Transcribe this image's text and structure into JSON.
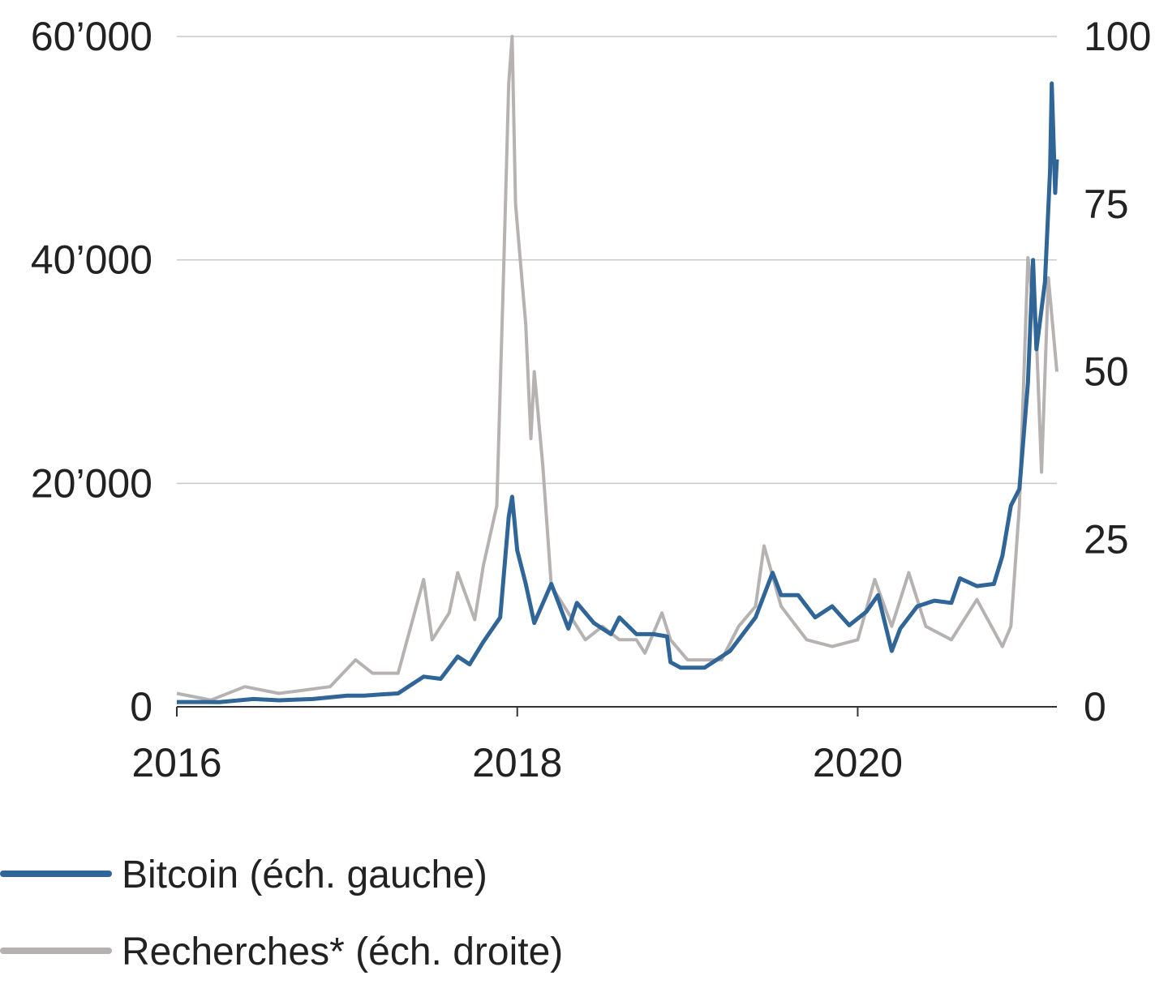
{
  "chart_data": {
    "type": "line",
    "title": "",
    "xlabel": "",
    "ylabel_left": "",
    "ylabel_right": "",
    "xlim": [
      2016.0,
      2021.17
    ],
    "ylim_left": [
      0,
      60000
    ],
    "ylim_right": [
      0,
      100
    ],
    "x_ticks": [
      2016,
      2018,
      2020
    ],
    "x_tick_labels": [
      "2016",
      "2018",
      "2020"
    ],
    "y_left_ticks": [
      0,
      20000,
      40000,
      60000
    ],
    "y_left_tick_labels": [
      "0",
      "20’000",
      "40’000",
      "60’000"
    ],
    "y_right_ticks": [
      0,
      25,
      50,
      75,
      100
    ],
    "y_right_tick_labels": [
      "0",
      "25",
      "50",
      "75",
      "100"
    ],
    "grid": true,
    "legend_position": "bottom-left",
    "colors": {
      "bitcoin": "#2f6597",
      "searches": "#b7b2b2",
      "grid": "#c8c8c8",
      "axis": "#333333"
    },
    "series": [
      {
        "name": "Bitcoin (éch. gauche)",
        "axis": "left",
        "points": [
          [
            2016.0,
            430
          ],
          [
            2016.25,
            420
          ],
          [
            2016.45,
            700
          ],
          [
            2016.6,
            580
          ],
          [
            2016.8,
            700
          ],
          [
            2017.0,
            1000
          ],
          [
            2017.1,
            1000
          ],
          [
            2017.2,
            1100
          ],
          [
            2017.3,
            1200
          ],
          [
            2017.4,
            2200
          ],
          [
            2017.45,
            2700
          ],
          [
            2017.55,
            2500
          ],
          [
            2017.65,
            4500
          ],
          [
            2017.72,
            3800
          ],
          [
            2017.8,
            5800
          ],
          [
            2017.9,
            8000
          ],
          [
            2017.95,
            17000
          ],
          [
            2017.97,
            18800
          ],
          [
            2018.0,
            14000
          ],
          [
            2018.05,
            11000
          ],
          [
            2018.1,
            7500
          ],
          [
            2018.2,
            11000
          ],
          [
            2018.3,
            7000
          ],
          [
            2018.35,
            9300
          ],
          [
            2018.45,
            7500
          ],
          [
            2018.55,
            6500
          ],
          [
            2018.6,
            8000
          ],
          [
            2018.7,
            6500
          ],
          [
            2018.8,
            6500
          ],
          [
            2018.88,
            6300
          ],
          [
            2018.9,
            4000
          ],
          [
            2018.96,
            3500
          ],
          [
            2019.1,
            3500
          ],
          [
            2019.25,
            5000
          ],
          [
            2019.4,
            8000
          ],
          [
            2019.5,
            12000
          ],
          [
            2019.55,
            10000
          ],
          [
            2019.65,
            10000
          ],
          [
            2019.75,
            8000
          ],
          [
            2019.85,
            9000
          ],
          [
            2019.95,
            7300
          ],
          [
            2020.05,
            8500
          ],
          [
            2020.12,
            10000
          ],
          [
            2020.2,
            5000
          ],
          [
            2020.25,
            7000
          ],
          [
            2020.35,
            9000
          ],
          [
            2020.45,
            9500
          ],
          [
            2020.55,
            9300
          ],
          [
            2020.6,
            11500
          ],
          [
            2020.7,
            10800
          ],
          [
            2020.8,
            11000
          ],
          [
            2020.85,
            13500
          ],
          [
            2020.9,
            18000
          ],
          [
            2020.95,
            19500
          ],
          [
            2021.0,
            29000
          ],
          [
            2021.03,
            40000
          ],
          [
            2021.05,
            32000
          ],
          [
            2021.1,
            38000
          ],
          [
            2021.13,
            48000
          ],
          [
            2021.14,
            55800
          ],
          [
            2021.16,
            46000
          ],
          [
            2021.17,
            49000
          ]
        ]
      },
      {
        "name": "Recherches* (éch. droite)",
        "axis": "right",
        "points": [
          [
            2016.0,
            2
          ],
          [
            2016.2,
            1
          ],
          [
            2016.4,
            3
          ],
          [
            2016.6,
            2
          ],
          [
            2016.9,
            3
          ],
          [
            2017.05,
            7
          ],
          [
            2017.15,
            5
          ],
          [
            2017.3,
            5
          ],
          [
            2017.45,
            19
          ],
          [
            2017.5,
            10
          ],
          [
            2017.6,
            14
          ],
          [
            2017.65,
            20
          ],
          [
            2017.75,
            13
          ],
          [
            2017.8,
            21
          ],
          [
            2017.88,
            30
          ],
          [
            2017.92,
            65
          ],
          [
            2017.95,
            93
          ],
          [
            2017.97,
            100
          ],
          [
            2017.99,
            75
          ],
          [
            2018.05,
            57
          ],
          [
            2018.08,
            40
          ],
          [
            2018.1,
            50
          ],
          [
            2018.15,
            36
          ],
          [
            2018.2,
            18
          ],
          [
            2018.3,
            14
          ],
          [
            2018.4,
            10
          ],
          [
            2018.5,
            12
          ],
          [
            2018.6,
            10
          ],
          [
            2018.7,
            10
          ],
          [
            2018.75,
            8
          ],
          [
            2018.85,
            14
          ],
          [
            2018.9,
            10
          ],
          [
            2019.0,
            7
          ],
          [
            2019.2,
            7
          ],
          [
            2019.3,
            12
          ],
          [
            2019.4,
            15
          ],
          [
            2019.45,
            24
          ],
          [
            2019.55,
            15
          ],
          [
            2019.7,
            10
          ],
          [
            2019.85,
            9
          ],
          [
            2020.0,
            10
          ],
          [
            2020.1,
            19
          ],
          [
            2020.2,
            12
          ],
          [
            2020.3,
            20
          ],
          [
            2020.4,
            12
          ],
          [
            2020.55,
            10
          ],
          [
            2020.7,
            16
          ],
          [
            2020.85,
            9
          ],
          [
            2020.9,
            12
          ],
          [
            2020.95,
            30
          ],
          [
            2021.0,
            67
          ],
          [
            2021.05,
            55
          ],
          [
            2021.08,
            35
          ],
          [
            2021.12,
            64
          ],
          [
            2021.17,
            50
          ]
        ]
      }
    ]
  }
}
